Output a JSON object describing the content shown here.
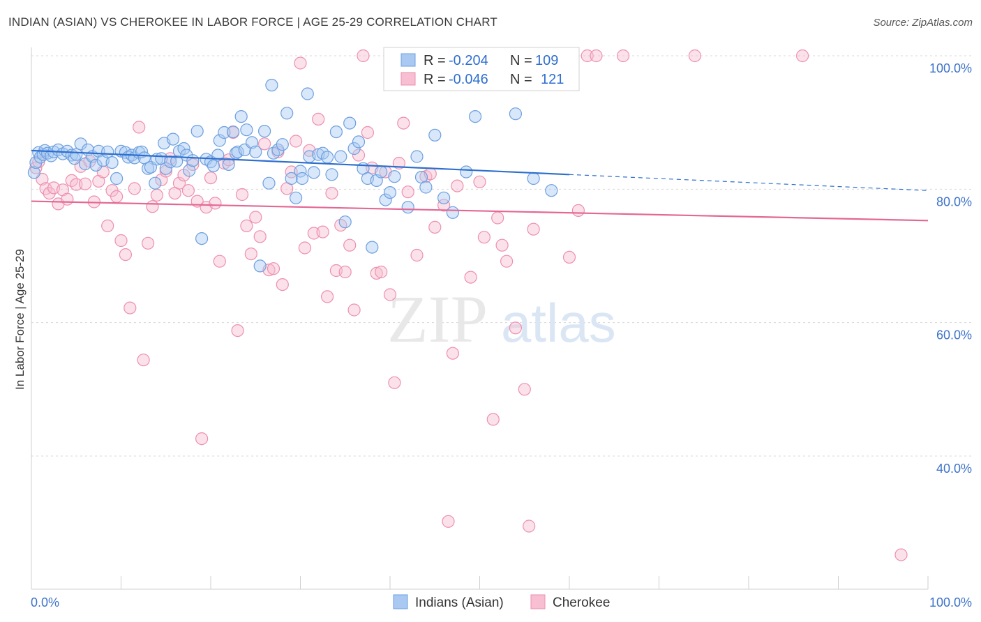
{
  "title": "INDIAN (ASIAN) VS CHEROKEE IN LABOR FORCE | AGE 25-29 CORRELATION CHART",
  "source": "Source: ZipAtlas.com",
  "watermark": {
    "zip": "ZIP",
    "atlas": "atlas"
  },
  "colors": {
    "indian_fill": "#a9c9f2",
    "indian_stroke": "#6d9fe0",
    "indian_line": "#2e6fce",
    "cherokee_fill": "#f7bfd1",
    "cherokee_stroke": "#ee8fae",
    "cherokee_line": "#e46794",
    "grid": "#d8d8d8",
    "tick_label": "#3d73c9"
  },
  "legend": {
    "row1": {
      "r_label": "R = ",
      "r_value": "-0.204",
      "n_label": "N = ",
      "n_value": "109"
    },
    "row2": {
      "r_label": "R = ",
      "r_value": "-0.046",
      "n_label": "N = ",
      "n_value": "121"
    }
  },
  "chart_data": {
    "type": "scatter",
    "title": "INDIAN (ASIAN) VS CHEROKEE IN LABOR FORCE | AGE 25-29 CORRELATION CHART",
    "xlabel": "",
    "ylabel": "In Labor Force | Age 25-29",
    "xlim": [
      0,
      100
    ],
    "ylim": [
      20,
      102
    ],
    "x_tick_labels": [
      "0.0%",
      "100.0%"
    ],
    "y_ticks": [
      40,
      60,
      80,
      100
    ],
    "y_tick_labels": [
      "40.0%",
      "60.0%",
      "80.0%",
      "100.0%"
    ],
    "grid": true,
    "legend_position": "top-center",
    "series": [
      {
        "name": "Indians (Asian)",
        "R": -0.204,
        "N": 109,
        "trend": {
          "x": [
            0,
            60
          ],
          "y": [
            85.8,
            82.2
          ],
          "dashed_to": [
            100,
            79.8
          ]
        },
        "points": [
          [
            0.3,
            82.5
          ],
          [
            0.5,
            84
          ],
          [
            0.8,
            85.5
          ],
          [
            1,
            84.8
          ],
          [
            1.3,
            85.2
          ],
          [
            1.5,
            85.8
          ],
          [
            1.8,
            85.4
          ],
          [
            2.2,
            85
          ],
          [
            2.5,
            85.6
          ],
          [
            3,
            85.9
          ],
          [
            3.5,
            85.3
          ],
          [
            4,
            85.7
          ],
          [
            4.5,
            85.1
          ],
          [
            4.8,
            84.6
          ],
          [
            5,
            85.2
          ],
          [
            5.5,
            86.8
          ],
          [
            6,
            83.8
          ],
          [
            6.3,
            85.9
          ],
          [
            6.8,
            84.9
          ],
          [
            7.2,
            83.6
          ],
          [
            7.5,
            85.7
          ],
          [
            8,
            84.3
          ],
          [
            8.5,
            85.6
          ],
          [
            9,
            84
          ],
          [
            9.5,
            81.6
          ],
          [
            10,
            85.7
          ],
          [
            10.5,
            85.5
          ],
          [
            10.8,
            84.8
          ],
          [
            11.2,
            85.1
          ],
          [
            11.5,
            84.7
          ],
          [
            12,
            85.5
          ],
          [
            12.3,
            85.6
          ],
          [
            12.6,
            84.7
          ],
          [
            13,
            83.1
          ],
          [
            13.3,
            83.3
          ],
          [
            13.8,
            80.9
          ],
          [
            14,
            84.5
          ],
          [
            14.5,
            84.6
          ],
          [
            14.8,
            86.9
          ],
          [
            15,
            83.1
          ],
          [
            15.5,
            84.1
          ],
          [
            15.8,
            87.5
          ],
          [
            16.2,
            84.2
          ],
          [
            16.5,
            85.7
          ],
          [
            17,
            86.1
          ],
          [
            17.3,
            85.1
          ],
          [
            17.6,
            82.8
          ],
          [
            18,
            84.3
          ],
          [
            18.5,
            88.7
          ],
          [
            19,
            72.6
          ],
          [
            19.5,
            84.5
          ],
          [
            20,
            84.1
          ],
          [
            20.3,
            83.5
          ],
          [
            20.8,
            85.1
          ],
          [
            21,
            87.3
          ],
          [
            21.5,
            88.5
          ],
          [
            22,
            83.7
          ],
          [
            22.5,
            88.6
          ],
          [
            22.8,
            85.4
          ],
          [
            23,
            85.6
          ],
          [
            23.4,
            90.9
          ],
          [
            23.8,
            85.9
          ],
          [
            24,
            88.9
          ],
          [
            24.6,
            87
          ],
          [
            25,
            85.6
          ],
          [
            25.5,
            68.5
          ],
          [
            26,
            88.7
          ],
          [
            26.5,
            80.9
          ],
          [
            26.8,
            95.6
          ],
          [
            27,
            85.4
          ],
          [
            27.5,
            85.9
          ],
          [
            28,
            86.7
          ],
          [
            28.5,
            91.4
          ],
          [
            29,
            81.6
          ],
          [
            29.5,
            78.7
          ],
          [
            30,
            82.7
          ],
          [
            30.2,
            81.6
          ],
          [
            30.8,
            94.3
          ],
          [
            31,
            84.9
          ],
          [
            31.5,
            82.5
          ],
          [
            32,
            85.2
          ],
          [
            32.5,
            85.4
          ],
          [
            33,
            84.8
          ],
          [
            33.5,
            82.2
          ],
          [
            34,
            88.6
          ],
          [
            34.5,
            84.9
          ],
          [
            35,
            75.1
          ],
          [
            35.5,
            89.9
          ],
          [
            36,
            86.1
          ],
          [
            36.5,
            87.1
          ],
          [
            37,
            83.1
          ],
          [
            37.5,
            81.6
          ],
          [
            38,
            71.3
          ],
          [
            38.5,
            81.3
          ],
          [
            39,
            82.6
          ],
          [
            39.5,
            78.4
          ],
          [
            40,
            79.5
          ],
          [
            40.5,
            81.9
          ],
          [
            42,
            77.3
          ],
          [
            43,
            84.9
          ],
          [
            43.5,
            81.8
          ],
          [
            44,
            80.3
          ],
          [
            45,
            88.1
          ],
          [
            46,
            78.7
          ],
          [
            47,
            76.5
          ],
          [
            48.5,
            82.6
          ],
          [
            49.5,
            90.9
          ],
          [
            54,
            91.3
          ],
          [
            56,
            81.6
          ],
          [
            58,
            79.8
          ]
        ]
      },
      {
        "name": "Cherokee",
        "R": -0.046,
        "N": 121,
        "trend": {
          "x": [
            0,
            100
          ],
          "y": [
            78.2,
            75.3
          ]
        },
        "points": [
          [
            0.5,
            83.2
          ],
          [
            0.8,
            84.1
          ],
          [
            1.2,
            81.5
          ],
          [
            1.6,
            80.1
          ],
          [
            2,
            79.4
          ],
          [
            2.5,
            80.2
          ],
          [
            3,
            77.8
          ],
          [
            3.5,
            79.9
          ],
          [
            4,
            78.5
          ],
          [
            4.5,
            81.3
          ],
          [
            5,
            80.7
          ],
          [
            5.5,
            83.4
          ],
          [
            6,
            80.8
          ],
          [
            6.5,
            84.2
          ],
          [
            7,
            78.1
          ],
          [
            7.5,
            81.2
          ],
          [
            8,
            82.6
          ],
          [
            8.5,
            74.5
          ],
          [
            9,
            79.8
          ],
          [
            9.5,
            78.9
          ],
          [
            10,
            72.3
          ],
          [
            10.5,
            70.2
          ],
          [
            11,
            62.2
          ],
          [
            11.5,
            80.1
          ],
          [
            12,
            89.3
          ],
          [
            12.5,
            54.4
          ],
          [
            13,
            71.9
          ],
          [
            13.5,
            77.4
          ],
          [
            14,
            79.1
          ],
          [
            14.5,
            81.4
          ],
          [
            15,
            82.7
          ],
          [
            15.5,
            84.6
          ],
          [
            16,
            79.4
          ],
          [
            16.5,
            80.9
          ],
          [
            17,
            82.1
          ],
          [
            17.5,
            79.8
          ],
          [
            18,
            83.7
          ],
          [
            18.5,
            78.2
          ],
          [
            19,
            42.6
          ],
          [
            19.5,
            77.3
          ],
          [
            20,
            81.7
          ],
          [
            20.5,
            77.9
          ],
          [
            21,
            69.2
          ],
          [
            21.5,
            83.9
          ],
          [
            22,
            84.4
          ],
          [
            22.5,
            88.5
          ],
          [
            23,
            58.8
          ],
          [
            23.5,
            79.2
          ],
          [
            24,
            74.5
          ],
          [
            24.5,
            70.3
          ],
          [
            25,
            75.8
          ],
          [
            25.5,
            72.9
          ],
          [
            26,
            86.8
          ],
          [
            26.5,
            67.9
          ],
          [
            27,
            68.1
          ],
          [
            27.5,
            85.6
          ],
          [
            28,
            65.7
          ],
          [
            28.5,
            80.1
          ],
          [
            29,
            82.6
          ],
          [
            29.5,
            87.2
          ],
          [
            30,
            98.9
          ],
          [
            30.5,
            71.2
          ],
          [
            31,
            85.8
          ],
          [
            31.5,
            73.4
          ],
          [
            32,
            90.5
          ],
          [
            32.5,
            73.6
          ],
          [
            33,
            63.9
          ],
          [
            33.5,
            79.4
          ],
          [
            34,
            67.8
          ],
          [
            34.5,
            74.6
          ],
          [
            35,
            67.6
          ],
          [
            35.5,
            71.6
          ],
          [
            36,
            61.9
          ],
          [
            36.5,
            85.1
          ],
          [
            37,
            100
          ],
          [
            37.5,
            88.5
          ],
          [
            38,
            83.2
          ],
          [
            38.5,
            67.4
          ],
          [
            39,
            67.6
          ],
          [
            39.5,
            82.6
          ],
          [
            40,
            64.2
          ],
          [
            40.5,
            51
          ],
          [
            41,
            83.9
          ],
          [
            41.5,
            89.9
          ],
          [
            42,
            79.6
          ],
          [
            43,
            70.1
          ],
          [
            44,
            81.9
          ],
          [
            44.5,
            82.3
          ],
          [
            45,
            74.3
          ],
          [
            46,
            77.6
          ],
          [
            46.5,
            30.2
          ],
          [
            47,
            55.4
          ],
          [
            47.5,
            80.5
          ],
          [
            48,
            100
          ],
          [
            48.5,
            99.8
          ],
          [
            49,
            66.8
          ],
          [
            49.5,
            97.9
          ],
          [
            50,
            81.1
          ],
          [
            50.5,
            72.8
          ],
          [
            51,
            100
          ],
          [
            51.5,
            45.5
          ],
          [
            52,
            75.7
          ],
          [
            52.5,
            71.6
          ],
          [
            53,
            69.2
          ],
          [
            54,
            59.2
          ],
          [
            55,
            50
          ],
          [
            55.5,
            29.5
          ],
          [
            56,
            74
          ],
          [
            58,
            100
          ],
          [
            59,
            99.8
          ],
          [
            60,
            69.8
          ],
          [
            61,
            76.8
          ],
          [
            62,
            100
          ],
          [
            63,
            100
          ],
          [
            66,
            100
          ],
          [
            74,
            100
          ],
          [
            86,
            100
          ],
          [
            97,
            25.2
          ]
        ]
      }
    ]
  }
}
